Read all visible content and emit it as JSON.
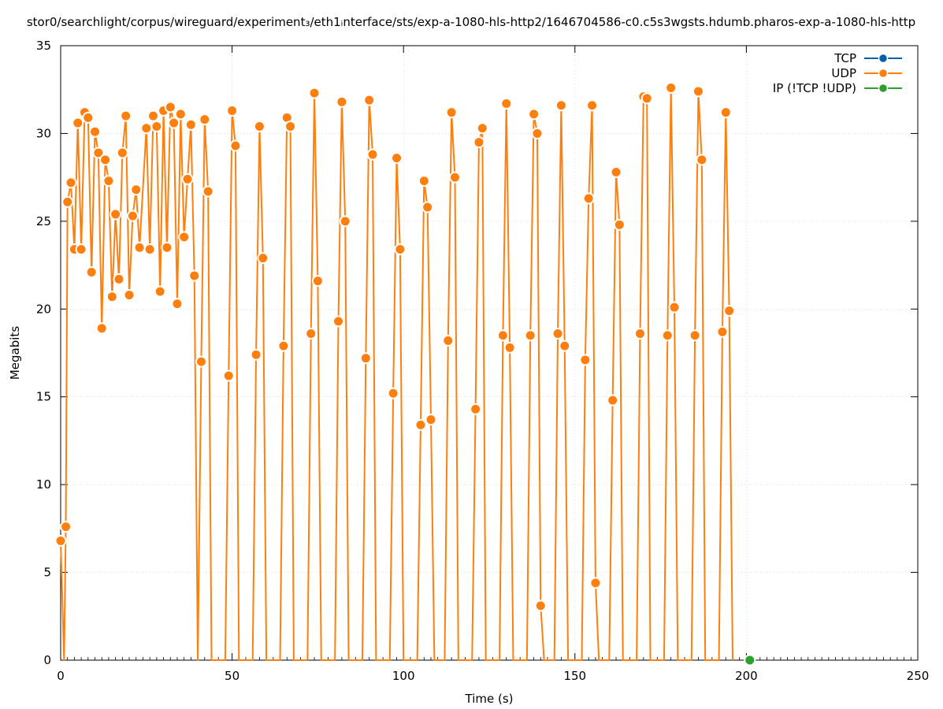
{
  "chart_data": {
    "type": "line",
    "title": "stor0/searchlight/corpus/wireguard/experiment₃/eth1ᵢnterface/sts/exp-a-1080-hls-http2/1646704586-c0.c5s3wgsts.hdumb.pharos-exp-a-1080-hls-http",
    "xlabel": "Time (s)",
    "ylabel": "Megabits",
    "xlim": [
      0,
      250
    ],
    "ylim": [
      0,
      35
    ],
    "xticks": [
      0,
      50,
      100,
      150,
      200,
      250
    ],
    "yticks": [
      0,
      5,
      10,
      15,
      20,
      25,
      30,
      35
    ],
    "grid": true,
    "legend_position": "top-right",
    "series": [
      {
        "name": "TCP",
        "color": "#0060ad",
        "points": []
      },
      {
        "name": "UDP",
        "color": "#ff7f0e",
        "points": [
          [
            0,
            6.8
          ],
          [
            1,
            0
          ],
          [
            1.5,
            7.6
          ],
          [
            2,
            26.1
          ],
          [
            3,
            27.2
          ],
          [
            4,
            23.4
          ],
          [
            5,
            30.6
          ],
          [
            6,
            23.4
          ],
          [
            7,
            31.2
          ],
          [
            8,
            30.9
          ],
          [
            9,
            22.1
          ],
          [
            10,
            30.1
          ],
          [
            11,
            28.9
          ],
          [
            12,
            18.9
          ],
          [
            13,
            28.5
          ],
          [
            14,
            27.3
          ],
          [
            15,
            20.7
          ],
          [
            16,
            25.4
          ],
          [
            17,
            21.7
          ],
          [
            18,
            28.9
          ],
          [
            19,
            31.0
          ],
          [
            20,
            20.8
          ],
          [
            21,
            25.3
          ],
          [
            22,
            26.8
          ],
          [
            23,
            23.5
          ],
          [
            25,
            30.3
          ],
          [
            26,
            23.4
          ],
          [
            27,
            31.0
          ],
          [
            28,
            30.4
          ],
          [
            29,
            21.0
          ],
          [
            30,
            31.3
          ],
          [
            31,
            23.5
          ],
          [
            32,
            31.5
          ],
          [
            33,
            30.6
          ],
          [
            34,
            20.3
          ],
          [
            35,
            31.1
          ],
          [
            36,
            24.1
          ],
          [
            37,
            27.4
          ],
          [
            38,
            30.5
          ],
          [
            39,
            21.9
          ],
          [
            40,
            0
          ],
          [
            41,
            17.0
          ],
          [
            42,
            30.8
          ],
          [
            43,
            26.7
          ],
          [
            44,
            0
          ],
          [
            48,
            0
          ],
          [
            49,
            16.2
          ],
          [
            50,
            31.3
          ],
          [
            51,
            29.3
          ],
          [
            52,
            0
          ],
          [
            56,
            0
          ],
          [
            57,
            17.4
          ],
          [
            58,
            30.4
          ],
          [
            59,
            22.9
          ],
          [
            60,
            0
          ],
          [
            64,
            0
          ],
          [
            65,
            17.9
          ],
          [
            66,
            30.9
          ],
          [
            67,
            30.4
          ],
          [
            68,
            0
          ],
          [
            72,
            0
          ],
          [
            73,
            18.6
          ],
          [
            74,
            32.3
          ],
          [
            75,
            21.6
          ],
          [
            76,
            0
          ],
          [
            80,
            0
          ],
          [
            81,
            19.3
          ],
          [
            82,
            31.8
          ],
          [
            83,
            25.0
          ],
          [
            84,
            0
          ],
          [
            88,
            0
          ],
          [
            89,
            17.2
          ],
          [
            90,
            31.9
          ],
          [
            91,
            28.8
          ],
          [
            92,
            0
          ],
          [
            96,
            0
          ],
          [
            97,
            15.2
          ],
          [
            98,
            28.6
          ],
          [
            99,
            23.4
          ],
          [
            100,
            0
          ],
          [
            104,
            0
          ],
          [
            105,
            13.4
          ],
          [
            106,
            27.3
          ],
          [
            107,
            25.8
          ],
          [
            108,
            13.7
          ],
          [
            109,
            0
          ],
          [
            112,
            0
          ],
          [
            113,
            18.2
          ],
          [
            114,
            31.2
          ],
          [
            115,
            27.5
          ],
          [
            116,
            0
          ],
          [
            120,
            0
          ],
          [
            121,
            14.3
          ],
          [
            122,
            29.5
          ],
          [
            123,
            30.3
          ],
          [
            124,
            0
          ],
          [
            128,
            0
          ],
          [
            129,
            18.5
          ],
          [
            130,
            31.7
          ],
          [
            131,
            17.8
          ],
          [
            132,
            0
          ],
          [
            136,
            0
          ],
          [
            137,
            18.5
          ],
          [
            138,
            31.1
          ],
          [
            139,
            30.0
          ],
          [
            140,
            3.1
          ],
          [
            141,
            0
          ],
          [
            144,
            0
          ],
          [
            145,
            18.6
          ],
          [
            146,
            31.6
          ],
          [
            147,
            17.9
          ],
          [
            148,
            0
          ],
          [
            152,
            0
          ],
          [
            153,
            17.1
          ],
          [
            154,
            26.3
          ],
          [
            155,
            31.6
          ],
          [
            156,
            4.4
          ],
          [
            157,
            0
          ],
          [
            160,
            0
          ],
          [
            161,
            14.8
          ],
          [
            162,
            27.8
          ],
          [
            163,
            24.8
          ],
          [
            164,
            0
          ],
          [
            168,
            0
          ],
          [
            169,
            18.6
          ],
          [
            170,
            32.1
          ],
          [
            171,
            32.0
          ],
          [
            172,
            0
          ],
          [
            176,
            0
          ],
          [
            177,
            18.5
          ],
          [
            178,
            32.6
          ],
          [
            179,
            20.1
          ],
          [
            180,
            0
          ],
          [
            184,
            0
          ],
          [
            185,
            18.5
          ],
          [
            186,
            32.4
          ],
          [
            187,
            28.5
          ],
          [
            188,
            0
          ],
          [
            192,
            0
          ],
          [
            193,
            18.7
          ],
          [
            194,
            31.2
          ],
          [
            195,
            19.9
          ],
          [
            196,
            0
          ]
        ]
      },
      {
        "name": "IP (!TCP  !UDP)",
        "color": "#2ca02c",
        "points": [
          [
            201,
            0
          ]
        ]
      }
    ]
  }
}
